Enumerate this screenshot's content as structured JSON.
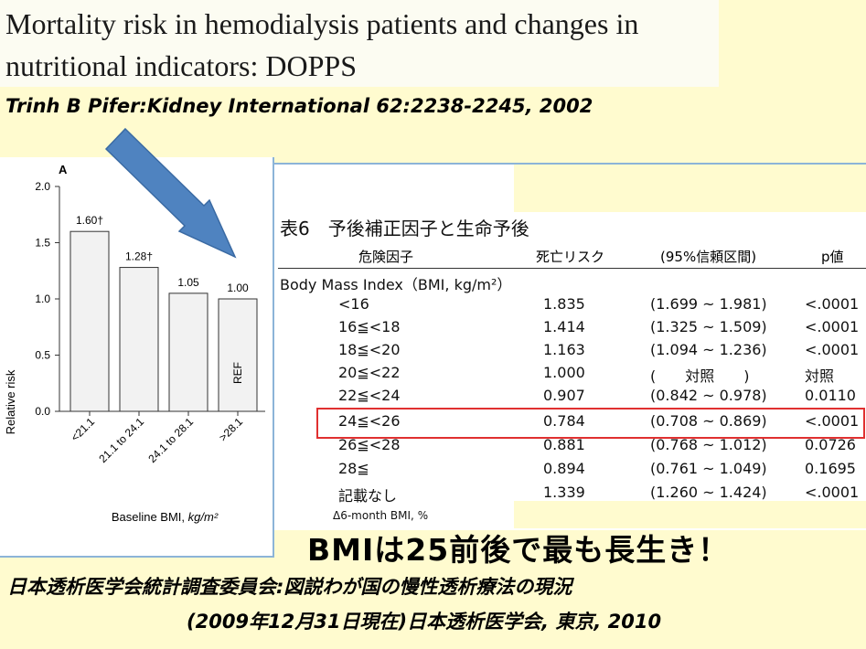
{
  "paper_title": {
    "line1": "Mortality risk in hemodialysis patients and changes in",
    "line2": "nutritional indicators: DOPPS"
  },
  "citation": "Trinh B Pifer:Kidney International 62:2238-2245, 2002",
  "chart_data": {
    "type": "bar",
    "panel_label": "A",
    "categories": [
      "<21.1",
      "21.1 to 24.1",
      "24.1 to 28.1",
      ">28.1"
    ],
    "values": [
      1.6,
      1.28,
      1.05,
      1.0
    ],
    "data_labels": [
      "1.60†",
      "1.28†",
      "1.05",
      "1.00"
    ],
    "bar_note": "REF",
    "xlabel_prefix": "Baseline BMI, ",
    "xlabel_unit": "kg/m²",
    "ylabel": "Relative risk",
    "yticks": [
      "0.0",
      "0.5",
      "1.0",
      "1.5",
      "2.0"
    ],
    "ylim": [
      0,
      2.0
    ],
    "grid": false
  },
  "table": {
    "title": "表6　予後補正因子と生命予後",
    "headers": [
      "危険因子",
      "死亡リスク",
      "(95%信頼区間)",
      "p値"
    ],
    "group_label": "Body Mass Index（BMI, kg/m²）",
    "rows": [
      {
        "factor": "<16",
        "risk": "1.835",
        "ci": "(1.699 ~ 1.981)",
        "p": "<.0001"
      },
      {
        "factor": "16≦<18",
        "risk": "1.414",
        "ci": "(1.325 ~ 1.509)",
        "p": "<.0001"
      },
      {
        "factor": "18≦<20",
        "risk": "1.163",
        "ci": "(1.094 ~ 1.236)",
        "p": "<.0001"
      },
      {
        "factor": "20≦<22",
        "risk": "1.000",
        "ci": "(　　対照　　)",
        "p": "対照"
      },
      {
        "factor": "22≦<24",
        "risk": "0.907",
        "ci": "(0.842 ~ 0.978)",
        "p": "0.0110"
      },
      {
        "factor": "24≦<26",
        "risk": "0.784",
        "ci": "(0.708 ~ 0.869)",
        "p": "<.0001"
      },
      {
        "factor": "26≦<28",
        "risk": "0.881",
        "ci": "(0.768 ~ 1.012)",
        "p": "0.0726"
      },
      {
        "factor": "28≦",
        "risk": "0.894",
        "ci": "(0.761 ~ 1.049)",
        "p": "0.1695"
      },
      {
        "factor": "記載なし",
        "risk": "1.339",
        "ci": "(1.260 ~ 1.424)",
        "p": "<.0001"
      }
    ],
    "next_group_label": "Δ6-month BMI, %"
  },
  "headline": "BMIは25前後で最も長生き！",
  "footer": {
    "line1": "日本透析医学会統計調査委員会:図説わが国の慢性透析療法の現況",
    "line2": "(2009年12月31日現在)日本透析医学会, 東京, 2010"
  },
  "colors": {
    "background": "#fffbcf",
    "arrow": "#4f83c0",
    "highlight_box": "#e03030",
    "bar_fill": "#f2f2f2"
  }
}
